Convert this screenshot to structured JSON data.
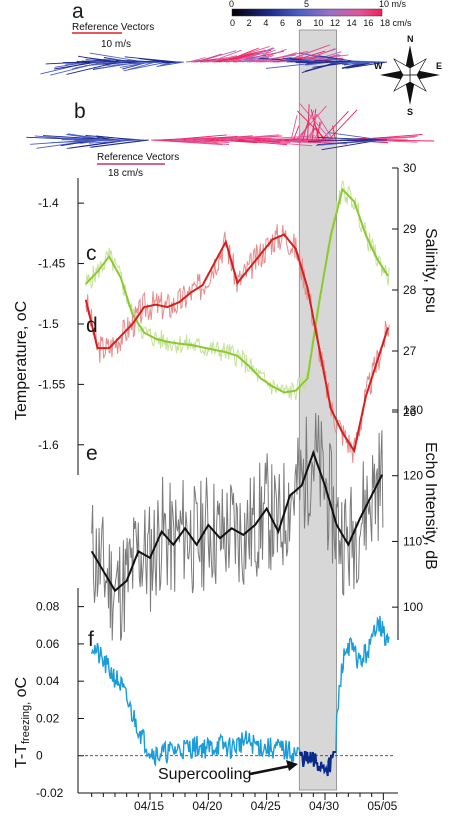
{
  "chart_data": {
    "type": "line",
    "x_ticks": [
      "04/15",
      "04/20",
      "04/25",
      "04/30",
      "05/05"
    ],
    "x_tick_days": [
      15,
      20,
      25,
      30,
      35
    ],
    "x_range_days": [
      9,
      36
    ],
    "supercooling_window_days": [
      27.8,
      31.0
    ],
    "panels": {
      "a": {
        "letter": "a",
        "reference_label": "Reference Vectors",
        "reference_value": "10 m/s",
        "colorbar_top_ticks": [
          "0",
          "5",
          "10 m/s"
        ],
        "colorbar_bottom_ticks": [
          "0",
          "2",
          "4",
          "6",
          "8",
          "10",
          "12",
          "14",
          "16",
          "18 cm/s"
        ],
        "colors": [
          "#000000",
          "#1f2a8c",
          "#4a5fc8",
          "#9a6fc8",
          "#e0559a",
          "#f21f5a"
        ]
      },
      "b": {
        "letter": "b",
        "reference_label": "Reference Vectors",
        "reference_value": "18 cm/s"
      },
      "compass": {
        "n": "N",
        "e": "E",
        "s": "S",
        "w": "W"
      },
      "c_temperature": {
        "letter": "c",
        "ylabel_main": "Temperature, ",
        "ylabel_unit": "oC",
        "y_ticks": [
          "-1.4",
          "-1.45",
          "-1.5",
          "-1.55",
          "-1.6"
        ],
        "y_range": [
          -1.625,
          -1.385
        ],
        "color_raw": "#e58c8c",
        "color_smooth": "#d42020",
        "x": [
          9.5,
          10.5,
          11.5,
          12.5,
          13.5,
          14.5,
          15.5,
          16.5,
          17.5,
          18.5,
          19.5,
          20.5,
          21.5,
          22.5,
          23.5,
          24.5,
          25.5,
          26.5,
          27.5,
          28.5,
          29.5,
          30.5,
          31.5,
          32.5,
          33.5,
          34.5,
          35.5
        ],
        "y": [
          -1.48,
          -1.52,
          -1.52,
          -1.51,
          -1.5,
          -1.486,
          -1.484,
          -1.486,
          -1.482,
          -1.474,
          -1.468,
          -1.45,
          -1.432,
          -1.466,
          -1.454,
          -1.442,
          -1.43,
          -1.426,
          -1.438,
          -1.47,
          -1.52,
          -1.57,
          -1.59,
          -1.605,
          -1.56,
          -1.53,
          -1.5
        ]
      },
      "d_salinity": {
        "letter": "d",
        "ylabel": "Salinity, psu",
        "y_ticks": [
          "30",
          "29",
          "28",
          "27",
          "26"
        ],
        "y_range": [
          26,
          30
        ],
        "color_raw": "#c6e29a",
        "color_smooth": "#8cc832",
        "x": [
          9.5,
          10.5,
          11.5,
          12.5,
          13.5,
          14.5,
          15.5,
          16.5,
          17.5,
          18.5,
          19.5,
          20.5,
          21.5,
          22.5,
          23.5,
          24.5,
          25.5,
          26.5,
          27.5,
          28.5,
          29.5,
          30.5,
          31.5,
          32.5,
          33.5,
          34.5,
          35.5
        ],
        "y": [
          28.1,
          28.3,
          28.55,
          28.2,
          27.6,
          27.3,
          27.2,
          27.15,
          27.12,
          27.1,
          27.06,
          27.02,
          26.98,
          26.92,
          26.75,
          26.55,
          26.42,
          26.32,
          26.35,
          26.55,
          27.8,
          28.9,
          29.65,
          29.45,
          28.9,
          28.5,
          28.2
        ]
      },
      "e_echo": {
        "letter": "e",
        "ylabel": "Echo Intensity, dB",
        "y_ticks": [
          "130",
          "120",
          "110",
          "100"
        ],
        "y_range": [
          95,
          130
        ],
        "color_raw": "#7a7a7a",
        "color_smooth": "#111111",
        "x": [
          10,
          11,
          12,
          13,
          14,
          15,
          16,
          17,
          18,
          19,
          20,
          21,
          22,
          23,
          24,
          25,
          26,
          27,
          28,
          29,
          30,
          31,
          32,
          33,
          34,
          35
        ],
        "y": [
          108.5,
          105.5,
          102.5,
          104,
          108.5,
          107.5,
          111.5,
          109.5,
          112,
          109.5,
          112.5,
          110.5,
          112,
          111,
          112.5,
          115,
          111.5,
          117,
          118.5,
          123.5,
          118.5,
          112.5,
          109.5,
          113.5,
          117,
          120.5
        ]
      },
      "f_supercooling": {
        "letter": "f",
        "ylabel_main": "T-T",
        "ylabel_sub": "freezing,",
        "ylabel_unit": " oC",
        "y_ticks": [
          "0.08",
          "0.06",
          "0.04",
          "0.02",
          "0",
          "-0.02"
        ],
        "y_range": [
          -0.02,
          0.09
        ],
        "color": "#1a9cd8",
        "color_below": "#0a2a8a",
        "annotation": "Supercooling",
        "x": [
          10,
          10.5,
          11,
          11.5,
          12,
          12.5,
          13,
          13.5,
          14,
          14.5,
          15,
          15.5,
          16,
          17,
          18,
          19,
          20,
          21,
          22,
          23,
          24,
          25,
          26,
          27,
          27.8,
          28.5,
          29,
          29.5,
          30,
          30.5,
          31,
          31.5,
          32,
          32.5,
          33,
          33.5,
          34,
          34.5,
          35,
          35.5
        ],
        "y": [
          0.06,
          0.055,
          0.05,
          0.046,
          0.042,
          0.038,
          0.03,
          0.022,
          0.015,
          0.008,
          0.003,
          0.001,
          0.001,
          0.003,
          0.004,
          0.005,
          0.004,
          0.006,
          0.004,
          0.008,
          0.006,
          0.004,
          0.004,
          0.002,
          0.001,
          -0.002,
          -0.003,
          -0.005,
          -0.005,
          -0.006,
          0.02,
          0.05,
          0.06,
          0.055,
          0.05,
          0.055,
          0.06,
          0.075,
          0.065,
          0.06
        ]
      }
    }
  }
}
